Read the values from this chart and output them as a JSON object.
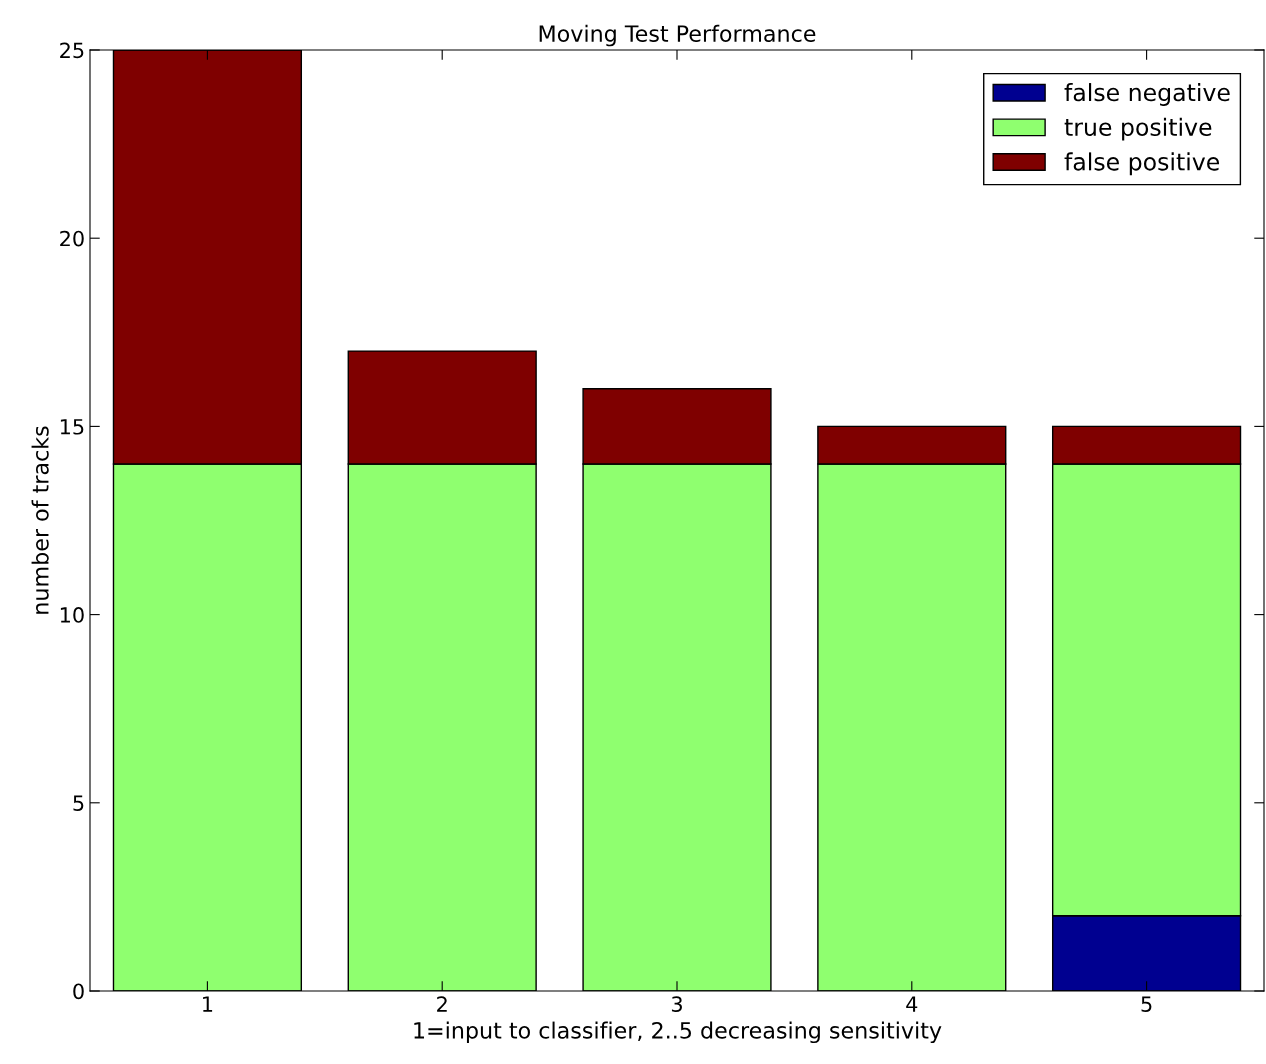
{
  "chart_data": {
    "type": "bar",
    "title": "Moving Test Performance",
    "xlabel": "1=input to classifier, 2..5 decreasing sensitivity",
    "ylabel": "number of tracks",
    "categories": [
      "1",
      "2",
      "3",
      "4",
      "5"
    ],
    "stacked": true,
    "series": [
      {
        "name": "false negative",
        "color": "#000090",
        "values": [
          0,
          0,
          0,
          0,
          2
        ]
      },
      {
        "name": "true positive",
        "color": "#8fff6f",
        "values": [
          14,
          14,
          14,
          14,
          12
        ]
      },
      {
        "name": "false positive",
        "color": "#7f0000",
        "values": [
          11,
          3,
          2,
          1,
          1
        ]
      }
    ],
    "ylim": [
      0,
      25
    ],
    "yticks": [
      0,
      5,
      10,
      15,
      20,
      25
    ],
    "grid": false,
    "legend": "top right"
  }
}
